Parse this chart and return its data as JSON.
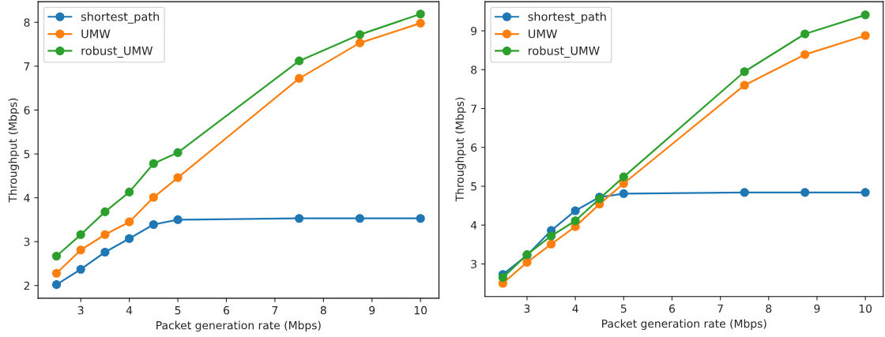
{
  "chart_data": [
    {
      "type": "line",
      "xlabel": "Packet generation rate (Mbps)",
      "ylabel": "Throughput (Mbps)",
      "x": [
        2.5,
        3,
        3.5,
        4,
        4.5,
        5,
        7.5,
        8.75,
        10
      ],
      "xlim": [
        2.12,
        10.38
      ],
      "ylim": [
        1.71,
        8.47
      ],
      "xticks": [
        3,
        4,
        5,
        6,
        7,
        8,
        9,
        10
      ],
      "yticks": [
        2,
        3,
        4,
        5,
        6,
        7,
        8
      ],
      "marker": "circle",
      "line_style": "solid",
      "legend": "top left",
      "grid": false,
      "series": [
        {
          "name": "shortest_path",
          "color": "#1f77b4",
          "values": [
            2.02,
            2.37,
            2.76,
            3.07,
            3.39,
            3.5,
            3.53,
            3.53,
            3.53
          ]
        },
        {
          "name": "UMW",
          "color": "#ff7f0e",
          "values": [
            2.28,
            2.81,
            3.16,
            3.45,
            4.01,
            4.46,
            6.72,
            7.53,
            7.98
          ]
        },
        {
          "name": "robust_UMW",
          "color": "#2ca02c",
          "values": [
            2.67,
            3.16,
            3.68,
            4.13,
            4.78,
            5.03,
            7.12,
            7.72,
            8.19
          ]
        }
      ]
    },
    {
      "type": "line",
      "xlabel": "Packet generation rate (Mbps)",
      "ylabel": "Throughput (Mbps)",
      "x": [
        2.5,
        3,
        3.5,
        4,
        4.5,
        5,
        7.5,
        8.75,
        10
      ],
      "xlim": [
        2.13,
        10.37
      ],
      "ylim": [
        2.16,
        9.75
      ],
      "xticks": [
        3,
        4,
        5,
        6,
        7,
        8,
        9,
        10
      ],
      "yticks": [
        3,
        4,
        5,
        6,
        7,
        8,
        9
      ],
      "marker": "circle",
      "line_style": "solid",
      "legend": "top left",
      "grid": false,
      "series": [
        {
          "name": "shortest_path",
          "color": "#1f77b4",
          "values": [
            2.73,
            3.22,
            3.86,
            4.37,
            4.72,
            4.81,
            4.84,
            4.84,
            4.84
          ]
        },
        {
          "name": "UMW",
          "color": "#ff7f0e",
          "values": [
            2.5,
            3.04,
            3.51,
            3.96,
            4.54,
            5.07,
            7.6,
            8.39,
            8.88
          ]
        },
        {
          "name": "robust_UMW",
          "color": "#2ca02c",
          "values": [
            2.65,
            3.24,
            3.72,
            4.11,
            4.68,
            5.24,
            7.95,
            8.92,
            9.41
          ]
        }
      ]
    }
  ]
}
